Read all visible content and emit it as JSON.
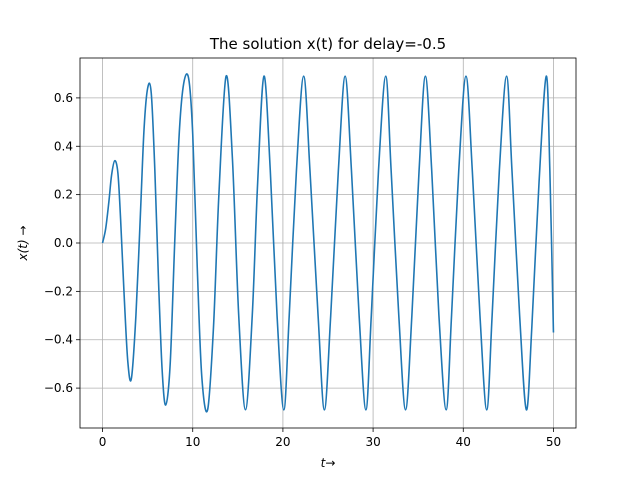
{
  "chart_data": {
    "type": "line",
    "title": "The solution x(t) for delay=-0.5",
    "xlabel": "t→",
    "ylabel": "x(t) →",
    "xlim": [
      -2.5,
      52.5
    ],
    "ylim": [
      -0.765,
      0.765
    ],
    "xticks": [
      0,
      10,
      20,
      30,
      40,
      50
    ],
    "yticks": [
      -0.6,
      -0.4,
      -0.2,
      0.0,
      0.2,
      0.4,
      0.6
    ],
    "xtick_labels": [
      "0",
      "10",
      "20",
      "30",
      "40",
      "50"
    ],
    "ytick_labels": [
      "−0.6",
      "−0.4",
      "−0.2",
      "0.0",
      "0.2",
      "0.4",
      "0.6"
    ],
    "grid": true,
    "color": "#1f77b4",
    "series": [
      {
        "x": [
          0,
          0.35,
          0.7,
          1.0,
          1.35,
          1.7,
          2.0,
          2.4,
          2.8,
          3.2,
          3.7,
          4.2,
          4.6,
          5.0,
          5.4,
          5.8,
          6.2,
          6.6,
          7.0,
          7.5,
          8.0,
          8.5,
          9.0,
          9.55,
          10.0,
          10.5,
          11.0,
          11.65,
          12.3,
          12.9,
          13.7,
          14.4,
          15.1,
          15.85,
          16.6,
          17.2,
          17.9,
          18.6,
          19.35,
          20.1,
          20.7,
          21.5,
          22.3,
          23.0,
          23.9,
          24.6,
          25.3,
          26.15,
          26.9,
          27.6,
          28.45,
          29.2,
          29.8,
          30.6,
          31.4,
          32.0,
          32.85,
          33.6,
          34.3,
          35.1,
          35.8,
          36.5,
          37.3,
          38.1,
          38.7,
          39.5,
          40.3,
          41.0,
          41.85,
          42.6,
          43.2,
          44.0,
          44.8,
          45.4,
          46.25,
          47.0,
          47.6,
          48.4,
          49.2,
          49.6,
          50.0
        ],
        "y": [
          0.0,
          0.06,
          0.17,
          0.28,
          0.34,
          0.29,
          0.1,
          -0.22,
          -0.49,
          -0.56,
          -0.3,
          0.12,
          0.47,
          0.64,
          0.62,
          0.3,
          -0.15,
          -0.52,
          -0.67,
          -0.5,
          0.0,
          0.45,
          0.66,
          0.68,
          0.45,
          -0.1,
          -0.55,
          -0.69,
          -0.35,
          0.2,
          0.69,
          0.35,
          -0.3,
          -0.69,
          -0.3,
          0.25,
          0.69,
          0.3,
          -0.3,
          -0.69,
          -0.3,
          0.3,
          0.69,
          0.3,
          -0.3,
          -0.69,
          -0.3,
          0.3,
          0.69,
          0.3,
          -0.3,
          -0.69,
          -0.3,
          0.3,
          0.69,
          0.3,
          -0.3,
          -0.69,
          -0.3,
          0.3,
          0.69,
          0.3,
          -0.3,
          -0.69,
          -0.3,
          0.3,
          0.69,
          0.3,
          -0.3,
          -0.69,
          -0.3,
          0.3,
          0.69,
          0.3,
          -0.3,
          -0.69,
          -0.35,
          0.25,
          0.69,
          0.3,
          -0.37
        ]
      }
    ]
  }
}
